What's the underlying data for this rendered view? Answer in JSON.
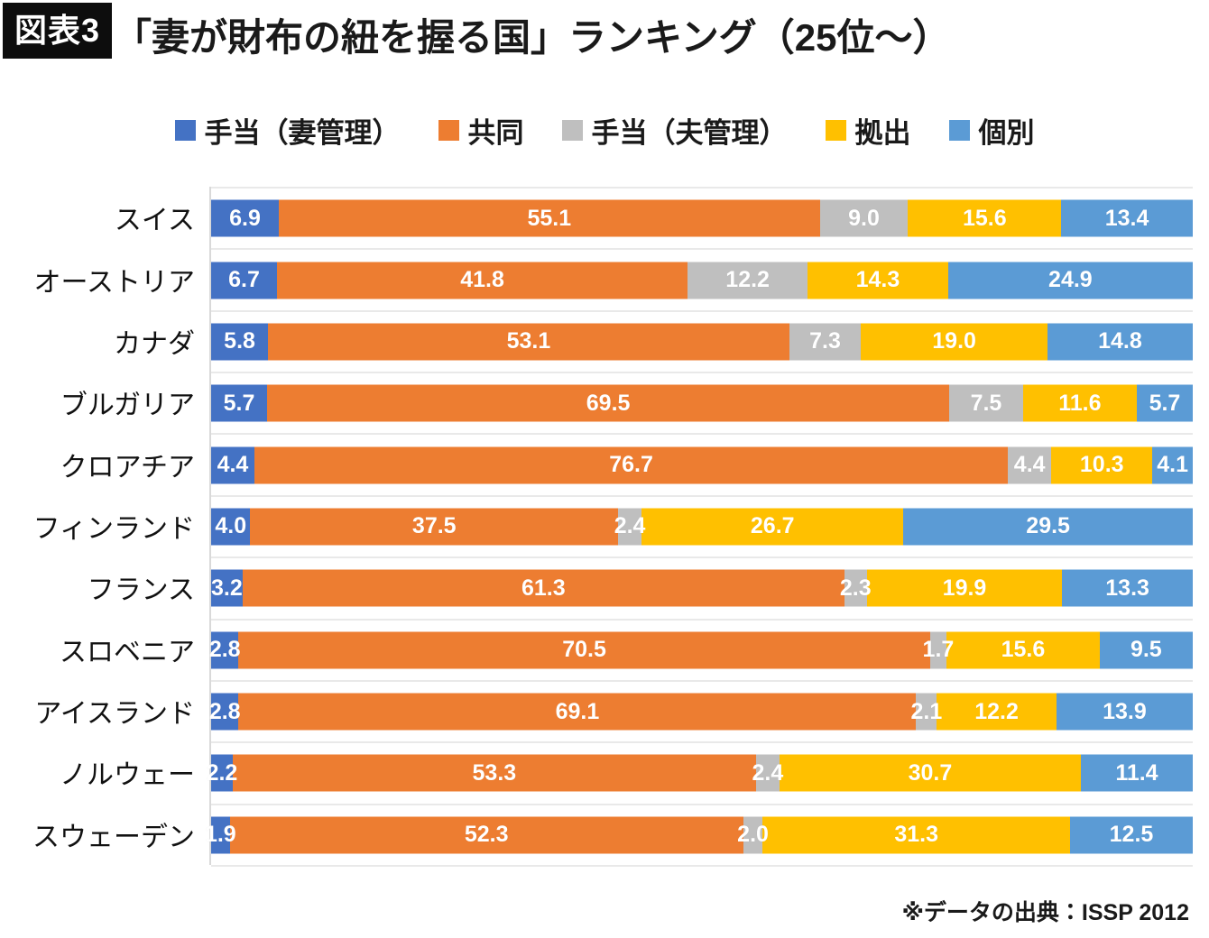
{
  "header": {
    "badge": "図表3",
    "title": "「妻が財布の紐を握る国」ランキング（25位〜）"
  },
  "footer": {
    "source": "※データの出典：ISSP 2012"
  },
  "chart_data": {
    "type": "bar",
    "orientation": "horizontal",
    "stacked": true,
    "stack_total": 100,
    "unit": "%",
    "legend_position": "top",
    "value_labels": "centered, white, one decimal",
    "grid": "light horizontal row separators, light vertical axis line",
    "categories": [
      "スイス",
      "オーストリア",
      "カナダ",
      "ブルガリア",
      "クロアチア",
      "フィンランド",
      "フランス",
      "スロベニア",
      "アイスランド",
      "ノルウェー",
      "スウェーデン"
    ],
    "series": [
      {
        "name": "手当（妻管理）",
        "color": "#4472C4",
        "values": [
          6.9,
          6.7,
          5.8,
          5.7,
          4.4,
          4.0,
          3.2,
          2.8,
          2.8,
          2.2,
          1.9
        ]
      },
      {
        "name": "共同",
        "color": "#ED7D31",
        "values": [
          55.1,
          41.8,
          53.1,
          69.5,
          76.7,
          37.5,
          61.3,
          70.5,
          69.1,
          53.3,
          52.3
        ]
      },
      {
        "name": "手当（夫管理）",
        "color": "#BFBFBF",
        "values": [
          9.0,
          12.2,
          7.3,
          7.5,
          4.4,
          2.4,
          2.3,
          1.7,
          2.1,
          2.4,
          2.0
        ]
      },
      {
        "name": "拠出",
        "color": "#FFC000",
        "values": [
          15.6,
          14.3,
          19.0,
          11.6,
          10.3,
          26.7,
          19.9,
          15.6,
          12.2,
          30.7,
          31.3
        ]
      },
      {
        "name": "個別",
        "color": "#5B9BD5",
        "values": [
          13.4,
          24.9,
          14.8,
          5.7,
          4.1,
          29.5,
          13.3,
          9.5,
          13.9,
          11.4,
          12.5
        ]
      }
    ]
  }
}
